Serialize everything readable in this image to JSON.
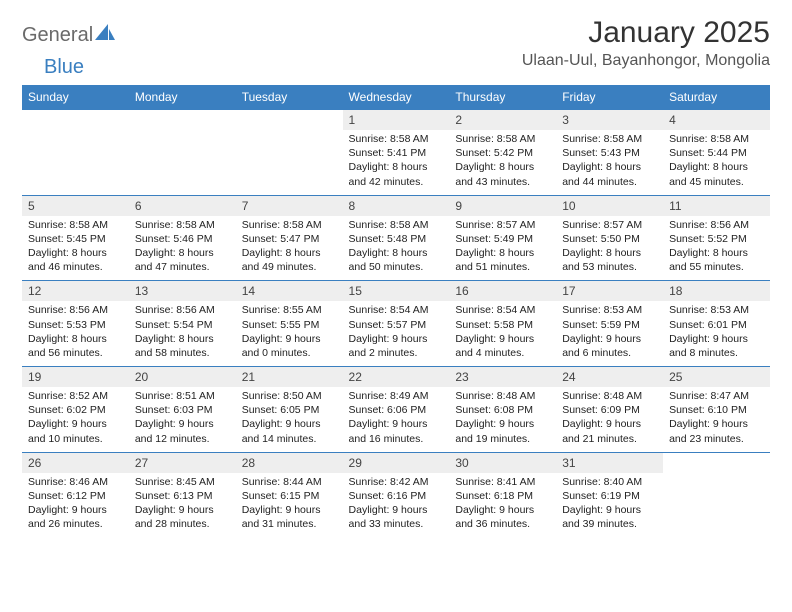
{
  "logo": {
    "text1": "General",
    "text2": "Blue"
  },
  "title": "January 2025",
  "location": "Ulaan-Uul, Bayanhongor, Mongolia",
  "colors": {
    "header_bg": "#3a7fc0",
    "header_text": "#ffffff",
    "daynum_bg": "#eeeeee",
    "cell_border": "#3a7fc0",
    "logo_gray": "#6a6a6a",
    "logo_blue": "#3a7fc0",
    "title_color": "#333333",
    "location_color": "#555555",
    "body_text": "#222222",
    "background": "#ffffff"
  },
  "typography": {
    "month_title_pt": 30,
    "location_pt": 16,
    "dayhead_pt": 12,
    "daynum_pt": 12,
    "detail_pt": 10.5,
    "logo_pt": 20
  },
  "day_headers": [
    "Sunday",
    "Monday",
    "Tuesday",
    "Wednesday",
    "Thursday",
    "Friday",
    "Saturday"
  ],
  "weeks": [
    [
      {
        "empty": true
      },
      {
        "empty": true
      },
      {
        "empty": true
      },
      {
        "num": "1",
        "sunrise": "Sunrise: 8:58 AM",
        "sunset": "Sunset: 5:41 PM",
        "day1": "Daylight: 8 hours",
        "day2": "and 42 minutes."
      },
      {
        "num": "2",
        "sunrise": "Sunrise: 8:58 AM",
        "sunset": "Sunset: 5:42 PM",
        "day1": "Daylight: 8 hours",
        "day2": "and 43 minutes."
      },
      {
        "num": "3",
        "sunrise": "Sunrise: 8:58 AM",
        "sunset": "Sunset: 5:43 PM",
        "day1": "Daylight: 8 hours",
        "day2": "and 44 minutes."
      },
      {
        "num": "4",
        "sunrise": "Sunrise: 8:58 AM",
        "sunset": "Sunset: 5:44 PM",
        "day1": "Daylight: 8 hours",
        "day2": "and 45 minutes."
      }
    ],
    [
      {
        "num": "5",
        "sunrise": "Sunrise: 8:58 AM",
        "sunset": "Sunset: 5:45 PM",
        "day1": "Daylight: 8 hours",
        "day2": "and 46 minutes."
      },
      {
        "num": "6",
        "sunrise": "Sunrise: 8:58 AM",
        "sunset": "Sunset: 5:46 PM",
        "day1": "Daylight: 8 hours",
        "day2": "and 47 minutes."
      },
      {
        "num": "7",
        "sunrise": "Sunrise: 8:58 AM",
        "sunset": "Sunset: 5:47 PM",
        "day1": "Daylight: 8 hours",
        "day2": "and 49 minutes."
      },
      {
        "num": "8",
        "sunrise": "Sunrise: 8:58 AM",
        "sunset": "Sunset: 5:48 PM",
        "day1": "Daylight: 8 hours",
        "day2": "and 50 minutes."
      },
      {
        "num": "9",
        "sunrise": "Sunrise: 8:57 AM",
        "sunset": "Sunset: 5:49 PM",
        "day1": "Daylight: 8 hours",
        "day2": "and 51 minutes."
      },
      {
        "num": "10",
        "sunrise": "Sunrise: 8:57 AM",
        "sunset": "Sunset: 5:50 PM",
        "day1": "Daylight: 8 hours",
        "day2": "and 53 minutes."
      },
      {
        "num": "11",
        "sunrise": "Sunrise: 8:56 AM",
        "sunset": "Sunset: 5:52 PM",
        "day1": "Daylight: 8 hours",
        "day2": "and 55 minutes."
      }
    ],
    [
      {
        "num": "12",
        "sunrise": "Sunrise: 8:56 AM",
        "sunset": "Sunset: 5:53 PM",
        "day1": "Daylight: 8 hours",
        "day2": "and 56 minutes."
      },
      {
        "num": "13",
        "sunrise": "Sunrise: 8:56 AM",
        "sunset": "Sunset: 5:54 PM",
        "day1": "Daylight: 8 hours",
        "day2": "and 58 minutes."
      },
      {
        "num": "14",
        "sunrise": "Sunrise: 8:55 AM",
        "sunset": "Sunset: 5:55 PM",
        "day1": "Daylight: 9 hours",
        "day2": "and 0 minutes."
      },
      {
        "num": "15",
        "sunrise": "Sunrise: 8:54 AM",
        "sunset": "Sunset: 5:57 PM",
        "day1": "Daylight: 9 hours",
        "day2": "and 2 minutes."
      },
      {
        "num": "16",
        "sunrise": "Sunrise: 8:54 AM",
        "sunset": "Sunset: 5:58 PM",
        "day1": "Daylight: 9 hours",
        "day2": "and 4 minutes."
      },
      {
        "num": "17",
        "sunrise": "Sunrise: 8:53 AM",
        "sunset": "Sunset: 5:59 PM",
        "day1": "Daylight: 9 hours",
        "day2": "and 6 minutes."
      },
      {
        "num": "18",
        "sunrise": "Sunrise: 8:53 AM",
        "sunset": "Sunset: 6:01 PM",
        "day1": "Daylight: 9 hours",
        "day2": "and 8 minutes."
      }
    ],
    [
      {
        "num": "19",
        "sunrise": "Sunrise: 8:52 AM",
        "sunset": "Sunset: 6:02 PM",
        "day1": "Daylight: 9 hours",
        "day2": "and 10 minutes."
      },
      {
        "num": "20",
        "sunrise": "Sunrise: 8:51 AM",
        "sunset": "Sunset: 6:03 PM",
        "day1": "Daylight: 9 hours",
        "day2": "and 12 minutes."
      },
      {
        "num": "21",
        "sunrise": "Sunrise: 8:50 AM",
        "sunset": "Sunset: 6:05 PM",
        "day1": "Daylight: 9 hours",
        "day2": "and 14 minutes."
      },
      {
        "num": "22",
        "sunrise": "Sunrise: 8:49 AM",
        "sunset": "Sunset: 6:06 PM",
        "day1": "Daylight: 9 hours",
        "day2": "and 16 minutes."
      },
      {
        "num": "23",
        "sunrise": "Sunrise: 8:48 AM",
        "sunset": "Sunset: 6:08 PM",
        "day1": "Daylight: 9 hours",
        "day2": "and 19 minutes."
      },
      {
        "num": "24",
        "sunrise": "Sunrise: 8:48 AM",
        "sunset": "Sunset: 6:09 PM",
        "day1": "Daylight: 9 hours",
        "day2": "and 21 minutes."
      },
      {
        "num": "25",
        "sunrise": "Sunrise: 8:47 AM",
        "sunset": "Sunset: 6:10 PM",
        "day1": "Daylight: 9 hours",
        "day2": "and 23 minutes."
      }
    ],
    [
      {
        "num": "26",
        "sunrise": "Sunrise: 8:46 AM",
        "sunset": "Sunset: 6:12 PM",
        "day1": "Daylight: 9 hours",
        "day2": "and 26 minutes."
      },
      {
        "num": "27",
        "sunrise": "Sunrise: 8:45 AM",
        "sunset": "Sunset: 6:13 PM",
        "day1": "Daylight: 9 hours",
        "day2": "and 28 minutes."
      },
      {
        "num": "28",
        "sunrise": "Sunrise: 8:44 AM",
        "sunset": "Sunset: 6:15 PM",
        "day1": "Daylight: 9 hours",
        "day2": "and 31 minutes."
      },
      {
        "num": "29",
        "sunrise": "Sunrise: 8:42 AM",
        "sunset": "Sunset: 6:16 PM",
        "day1": "Daylight: 9 hours",
        "day2": "and 33 minutes."
      },
      {
        "num": "30",
        "sunrise": "Sunrise: 8:41 AM",
        "sunset": "Sunset: 6:18 PM",
        "day1": "Daylight: 9 hours",
        "day2": "and 36 minutes."
      },
      {
        "num": "31",
        "sunrise": "Sunrise: 8:40 AM",
        "sunset": "Sunset: 6:19 PM",
        "day1": "Daylight: 9 hours",
        "day2": "and 39 minutes."
      },
      {
        "empty": true
      }
    ]
  ]
}
